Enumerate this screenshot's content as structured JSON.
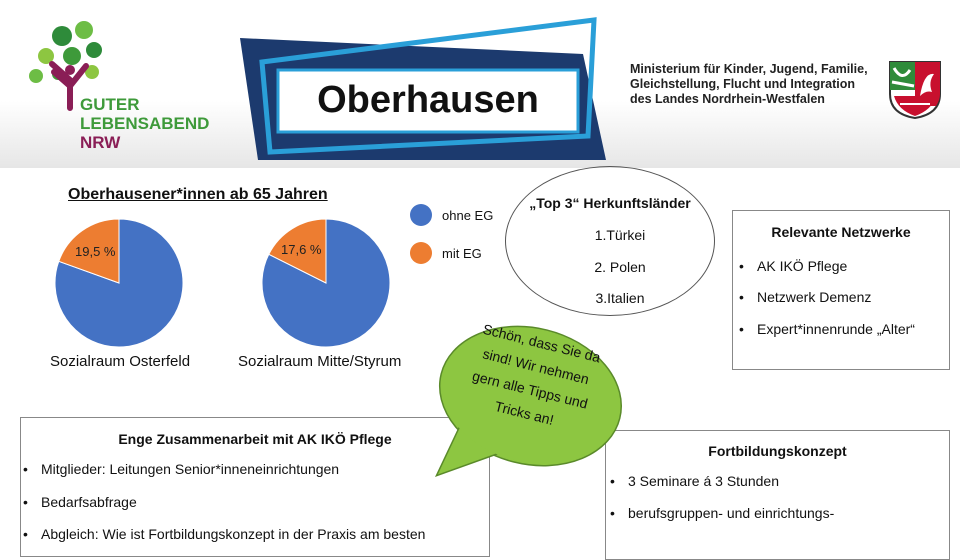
{
  "header": {
    "logo": {
      "line1": "GUTER",
      "line2": "LEBENSABEND",
      "line3": "NRW"
    },
    "title": "Oberhausen",
    "ministry": [
      "Ministerium für Kinder, Jugend, Familie,",
      "Gleichstellung, Flucht und Integration",
      "des Landes Nordrhein-Westfalen"
    ]
  },
  "chart_data": [
    {
      "type": "pie",
      "title": "Oberhausener*innen ab 65 Jahren",
      "caption": "Sozialraum Osterfeld",
      "slices": [
        {
          "name": "ohne EG",
          "value": 80.5,
          "color": "#4472c4"
        },
        {
          "name": "mit EG",
          "value": 19.5,
          "color": "#ed7d31",
          "label": "19,5 %"
        }
      ]
    },
    {
      "type": "pie",
      "caption": "Sozialraum Mitte/Styrum",
      "slices": [
        {
          "name": "ohne EG",
          "value": 82.4,
          "color": "#4472c4"
        },
        {
          "name": "mit EG",
          "value": 17.6,
          "color": "#ed7d31",
          "label": "17,6 %"
        }
      ]
    }
  ],
  "legend": [
    {
      "label": "ohne EG",
      "color": "#4472c4"
    },
    {
      "label": "mit EG",
      "color": "#ed7d31"
    }
  ],
  "top3": {
    "title": "„Top 3“ Herkunftsländer",
    "items": [
      "1.Türkei",
      "2. Polen",
      "3.Italien"
    ]
  },
  "netzwerke": {
    "title": "Relevante Netzwerke",
    "items": [
      "AK IKÖ Pflege",
      "Netzwerk Demenz",
      "Expert*innenrunde „Alter“"
    ]
  },
  "bubble": {
    "lines": [
      "Schön, dass Sie da",
      "sind! Wir nehmen",
      "gern alle Tipps und",
      "Tricks an!"
    ],
    "color": "#8dc641"
  },
  "zusammenarbeit": {
    "title": "Enge Zusammenarbeit mit AK IKÖ Pflege",
    "items": [
      "Mitglieder: Leitungen Senior*inneneinrichtungen",
      "Bedarfsabfrage",
      "Abgleich: Wie ist Fortbildungskonzept in der Praxis am besten"
    ]
  },
  "fortbildung": {
    "title": "Fortbildungskonzept",
    "items": [
      "3 Seminare á 3 Stunden",
      "berufsgruppen- und einrichtungs-"
    ]
  }
}
